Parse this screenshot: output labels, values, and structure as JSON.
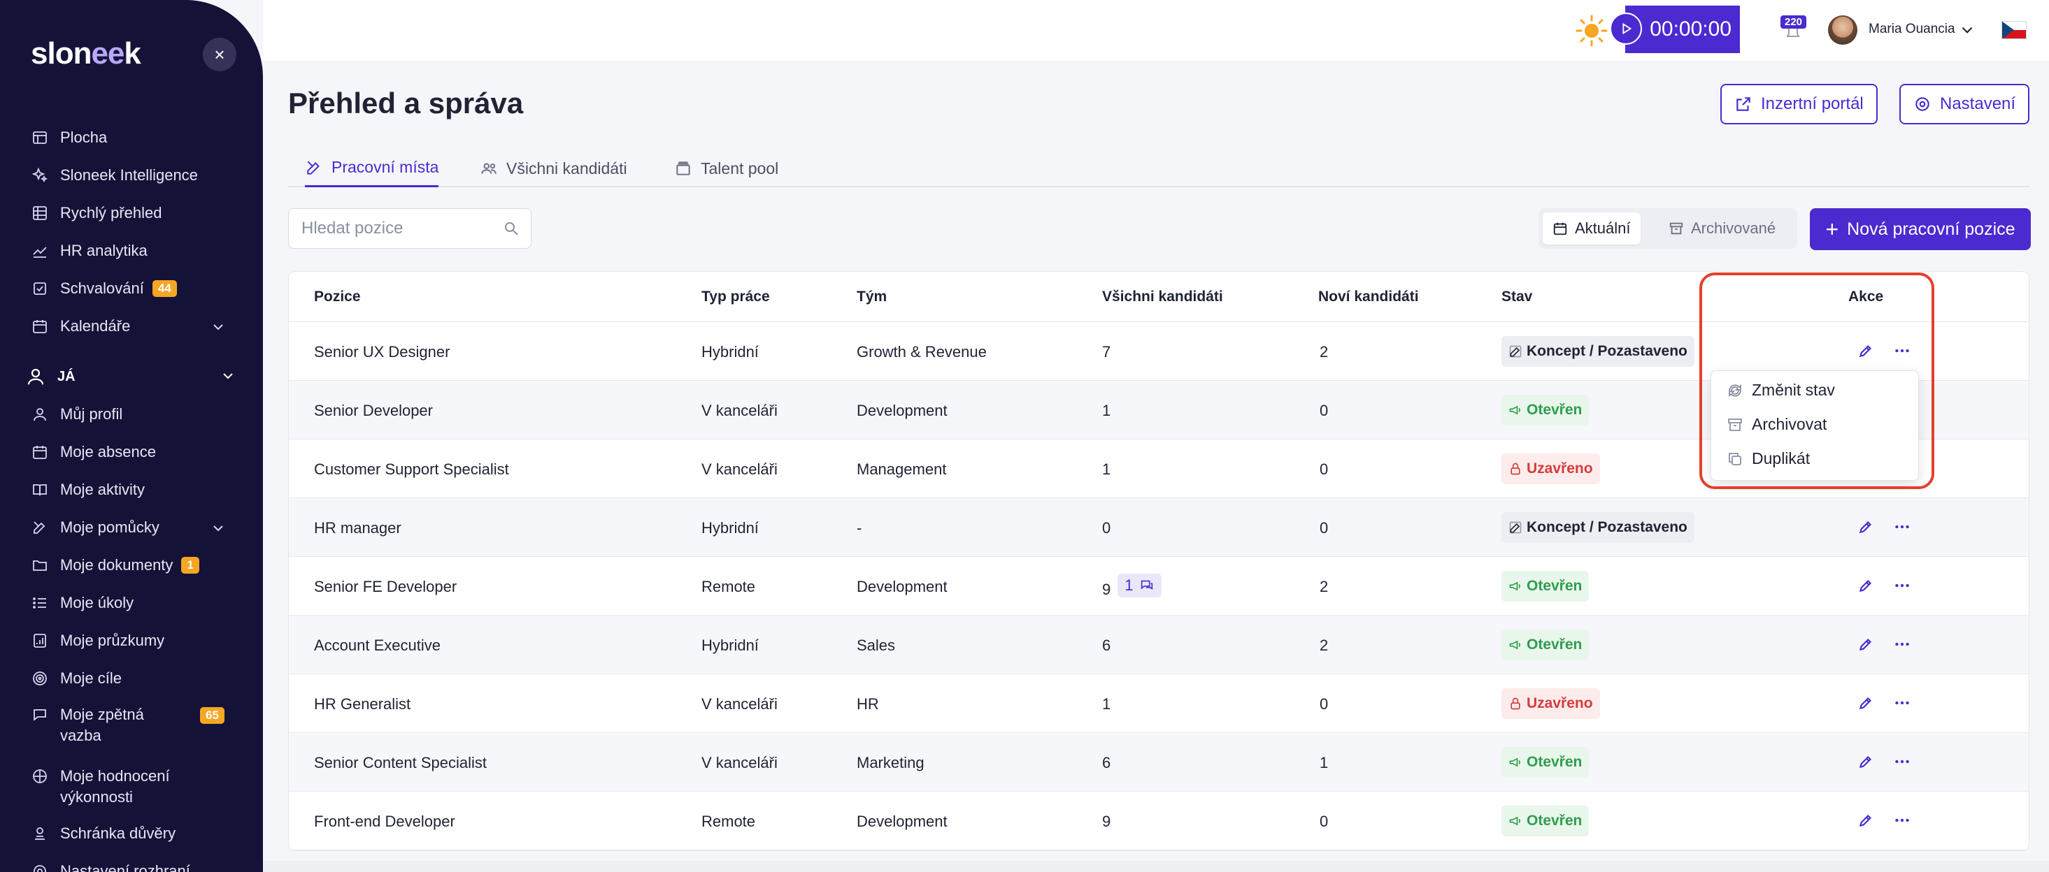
{
  "sidebar": {
    "logo": "sloneek",
    "close": "×",
    "items": [
      {
        "label": "Plocha",
        "icon": "layout-icon"
      },
      {
        "label": "Sloneek Intelligence",
        "icon": "sparkles-icon"
      },
      {
        "label": "Rychlý přehled",
        "icon": "grid-icon"
      },
      {
        "label": "HR analytika",
        "icon": "chart-icon"
      },
      {
        "label": "Schvalování",
        "icon": "approval-icon",
        "badge": "44"
      },
      {
        "label": "Kalendáře",
        "icon": "calendar-icon",
        "expandable": true
      }
    ],
    "section_label": "JÁ",
    "me_items": [
      {
        "label": "Můj profil",
        "icon": "user-icon"
      },
      {
        "label": "Moje absence",
        "icon": "calendar-icon"
      },
      {
        "label": "Moje aktivity",
        "icon": "book-icon"
      },
      {
        "label": "Moje pomůcky",
        "icon": "tools-icon",
        "expandable": true
      },
      {
        "label": "Moje dokumenty",
        "icon": "folder-icon",
        "badge": "1"
      },
      {
        "label": "Moje úkoly",
        "icon": "list-icon"
      },
      {
        "label": "Moje průzkumy",
        "icon": "survey-icon"
      },
      {
        "label": "Moje cíle",
        "icon": "target-icon"
      },
      {
        "label_line1": "Moje zpětná",
        "label_line2": "vazba",
        "icon": "chat-icon",
        "badge": "65"
      },
      {
        "label_line1": "Moje hodnocení",
        "label_line2": "výkonnosti",
        "icon": "rating-icon"
      },
      {
        "label": "Schránka důvěry",
        "icon": "trust-icon"
      },
      {
        "label": "Nastavení rozhraní",
        "icon": "settings-icon"
      }
    ]
  },
  "topbar": {
    "timer": "00:00:00",
    "notifications_count": "220",
    "user_name": "Maria Ouancia"
  },
  "header": {
    "title": "Přehled a správa",
    "portal_button": "Inzertní portál",
    "settings_button": "Nastavení"
  },
  "tabs": [
    {
      "label": "Pracovní místa",
      "active": true
    },
    {
      "label": "Všichni kandidáti",
      "active": false
    },
    {
      "label": "Talent pool",
      "active": false
    }
  ],
  "toolbar": {
    "search_placeholder": "Hledat pozice",
    "filter_current": "Aktuální",
    "filter_archived": "Archivované",
    "new_position": "Nová pracovní pozice"
  },
  "table": {
    "columns": [
      "Pozice",
      "Typ práce",
      "Tým",
      "Všichni kandidáti",
      "Noví kandidáti",
      "Stav",
      "Akce"
    ],
    "rows": [
      {
        "position": "Senior UX Designer",
        "type": "Hybridní",
        "team": "Growth & Revenue",
        "all": "7",
        "new": "2",
        "status": "Koncept / Pozastaveno",
        "status_kind": "concept"
      },
      {
        "position": "Senior Developer",
        "type": "V kanceláři",
        "team": "Development",
        "all": "1",
        "new": "0",
        "status": "Otevřen",
        "status_kind": "open"
      },
      {
        "position": "Customer Support Specialist",
        "type": "V kanceláři",
        "team": "Management",
        "all": "1",
        "new": "0",
        "status": "Uzavřeno",
        "status_kind": "closed"
      },
      {
        "position": "HR manager",
        "type": "Hybridní",
        "team": "-",
        "all": "0",
        "new": "0",
        "status": "Koncept / Pozastaveno",
        "status_kind": "concept"
      },
      {
        "position": "Senior FE Developer",
        "type": "Remote",
        "team": "Development",
        "all": "9",
        "all_badge": "1",
        "new": "2",
        "status": "Otevřen",
        "status_kind": "open"
      },
      {
        "position": "Account Executive",
        "type": "Hybridní",
        "team": "Sales",
        "all": "6",
        "new": "2",
        "status": "Otevřen",
        "status_kind": "open"
      },
      {
        "position": "HR Generalist",
        "type": "V kanceláři",
        "team": "HR",
        "all": "1",
        "new": "0",
        "status": "Uzavřeno",
        "status_kind": "closed"
      },
      {
        "position": "Senior Content Specialist",
        "type": "V kanceláři",
        "team": "Marketing",
        "all": "6",
        "new": "1",
        "status": "Otevřen",
        "status_kind": "open"
      },
      {
        "position": "Front-end Developer",
        "type": "Remote",
        "team": "Development",
        "all": "9",
        "new": "0",
        "status": "Otevřen",
        "status_kind": "open"
      }
    ]
  },
  "dropdown": {
    "items": [
      "Změnit stav",
      "Archivovat",
      "Duplikát"
    ]
  },
  "colors": {
    "accent": "#4b2ad0",
    "sidebar_bg": "#151238",
    "open": "#2f9e4d",
    "closed": "#d63b3b",
    "highlight": "#e3402f"
  }
}
